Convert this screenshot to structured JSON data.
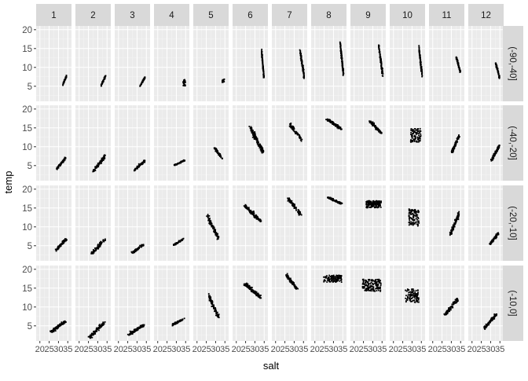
{
  "chart_data": {
    "type": "scatter",
    "facet_type": "grid",
    "xlabel": "salt",
    "ylabel": "temp",
    "x_ticks": [
      20,
      25,
      30,
      35
    ],
    "x_tick_labels": [
      "20",
      "25",
      "30",
      "35"
    ],
    "xlim": [
      18,
      37
    ],
    "y_ticks": [
      5,
      10,
      15,
      20
    ],
    "y_tick_labels": [
      "5",
      "10",
      "15",
      "20"
    ],
    "ylim": [
      1,
      21
    ],
    "grid": true,
    "column_facets": [
      "1",
      "2",
      "3",
      "4",
      "5",
      "6",
      "7",
      "8",
      "9",
      "10",
      "11",
      "12"
    ],
    "row_facets": [
      "(-90,-40]",
      "(-40,-20]",
      "(-20,-10]",
      "(-10,0]"
    ],
    "point_color": "#000000",
    "panel_background": "#ebebeb",
    "strip_background": "#d9d9d9",
    "panels": [
      {
        "row": 0,
        "col": 0,
        "salt": [
          32.0,
          34.5
        ],
        "temp": [
          5.0,
          8.0
        ],
        "trend": "increasing",
        "n": 50
      },
      {
        "row": 0,
        "col": 1,
        "salt": [
          31.5,
          34.5
        ],
        "temp": [
          5.0,
          8.0
        ],
        "trend": "increasing",
        "n": 50
      },
      {
        "row": 0,
        "col": 2,
        "salt": [
          31.5,
          34.5
        ],
        "temp": [
          5.0,
          7.5
        ],
        "trend": "increasing",
        "n": 45
      },
      {
        "row": 0,
        "col": 3,
        "salt": [
          33.5,
          35.0
        ],
        "temp": [
          5.0,
          7.0
        ],
        "trend": "flat",
        "n": 25
      },
      {
        "row": 0,
        "col": 4,
        "salt": [
          33.5,
          35.0
        ],
        "temp": [
          6.0,
          7.0
        ],
        "trend": "flat",
        "n": 15
      },
      {
        "row": 0,
        "col": 5,
        "salt": [
          33.5,
          35.0
        ],
        "temp": [
          6.5,
          15.0
        ],
        "trend": "decreasing",
        "n": 90
      },
      {
        "row": 0,
        "col": 6,
        "salt": [
          33.0,
          35.5
        ],
        "temp": [
          7.0,
          15.0
        ],
        "trend": "decreasing",
        "n": 90
      },
      {
        "row": 0,
        "col": 7,
        "salt": [
          33.5,
          35.5
        ],
        "temp": [
          7.5,
          17.0
        ],
        "trend": "decreasing",
        "n": 110
      },
      {
        "row": 0,
        "col": 8,
        "salt": [
          33.0,
          35.5
        ],
        "temp": [
          7.5,
          16.5
        ],
        "trend": "decreasing",
        "n": 100
      },
      {
        "row": 0,
        "col": 9,
        "salt": [
          33.5,
          35.5
        ],
        "temp": [
          7.5,
          16.0
        ],
        "trend": "decreasing",
        "n": 100
      },
      {
        "row": 0,
        "col": 10,
        "salt": [
          32.5,
          35.0
        ],
        "temp": [
          8.5,
          13.0
        ],
        "trend": "decreasing",
        "n": 80
      },
      {
        "row": 0,
        "col": 11,
        "salt": [
          32.5,
          35.0
        ],
        "temp": [
          7.0,
          11.5
        ],
        "trend": "decreasing",
        "n": 70
      },
      {
        "row": 1,
        "col": 0,
        "salt": [
          29.0,
          34.5
        ],
        "temp": [
          4.0,
          7.5
        ],
        "trend": "increasing",
        "n": 70
      },
      {
        "row": 1,
        "col": 1,
        "salt": [
          27.0,
          34.5
        ],
        "temp": [
          3.0,
          8.0
        ],
        "trend": "increasing",
        "n": 70
      },
      {
        "row": 1,
        "col": 2,
        "salt": [
          28.0,
          34.5
        ],
        "temp": [
          3.5,
          6.5
        ],
        "trend": "increasing",
        "n": 70
      },
      {
        "row": 1,
        "col": 3,
        "salt": [
          28.5,
          35.0
        ],
        "temp": [
          5.0,
          6.5
        ],
        "trend": "increasing",
        "n": 70
      },
      {
        "row": 1,
        "col": 4,
        "salt": [
          29.0,
          34.0
        ],
        "temp": [
          6.5,
          10.0
        ],
        "trend": "decreasing",
        "n": 60
      },
      {
        "row": 1,
        "col": 5,
        "salt": [
          27.0,
          35.0
        ],
        "temp": [
          8.0,
          15.5
        ],
        "trend": "decreasing",
        "n": 150
      },
      {
        "row": 1,
        "col": 6,
        "salt": [
          27.0,
          34.5
        ],
        "temp": [
          11.5,
          16.5
        ],
        "trend": "decreasing",
        "n": 80
      },
      {
        "row": 1,
        "col": 7,
        "salt": [
          26.0,
          35.0
        ],
        "temp": [
          14.5,
          17.5
        ],
        "trend": "decreasing",
        "n": 130
      },
      {
        "row": 1,
        "col": 8,
        "salt": [
          28.0,
          35.0
        ],
        "temp": [
          13.5,
          17.0
        ],
        "trend": "decreasing",
        "n": 130
      },
      {
        "row": 1,
        "col": 9,
        "salt": [
          29.0,
          35.0
        ],
        "temp": [
          11.0,
          15.0
        ],
        "trend": "flat",
        "n": 90
      },
      {
        "row": 1,
        "col": 10,
        "salt": [
          30.0,
          34.5
        ],
        "temp": [
          8.0,
          13.5
        ],
        "trend": "increasing",
        "n": 100
      },
      {
        "row": 1,
        "col": 11,
        "salt": [
          30.0,
          35.0
        ],
        "temp": [
          6.0,
          10.5
        ],
        "trend": "increasing",
        "n": 100
      },
      {
        "row": 2,
        "col": 0,
        "salt": [
          28.0,
          34.5
        ],
        "temp": [
          3.5,
          7.0
        ],
        "trend": "increasing",
        "n": 80
      },
      {
        "row": 2,
        "col": 1,
        "salt": [
          26.0,
          34.5
        ],
        "temp": [
          2.5,
          7.0
        ],
        "trend": "increasing",
        "n": 80
      },
      {
        "row": 2,
        "col": 2,
        "salt": [
          27.0,
          34.0
        ],
        "temp": [
          3.0,
          5.5
        ],
        "trend": "increasing",
        "n": 70
      },
      {
        "row": 2,
        "col": 3,
        "salt": [
          28.0,
          34.5
        ],
        "temp": [
          5.0,
          7.0
        ],
        "trend": "increasing",
        "n": 50
      },
      {
        "row": 2,
        "col": 4,
        "salt": [
          25.0,
          32.0
        ],
        "temp": [
          6.5,
          13.5
        ],
        "trend": "decreasing",
        "n": 90
      },
      {
        "row": 2,
        "col": 5,
        "salt": [
          24.0,
          34.0
        ],
        "temp": [
          11.0,
          16.0
        ],
        "trend": "decreasing",
        "n": 130
      },
      {
        "row": 2,
        "col": 6,
        "salt": [
          26.0,
          34.0
        ],
        "temp": [
          13.0,
          18.0
        ],
        "trend": "decreasing",
        "n": 90
      },
      {
        "row": 2,
        "col": 7,
        "salt": [
          26.0,
          35.0
        ],
        "temp": [
          16.0,
          18.0
        ],
        "trend": "decreasing",
        "n": 90
      },
      {
        "row": 2,
        "col": 8,
        "salt": [
          26.0,
          35.0
        ],
        "temp": [
          15.0,
          17.0
        ],
        "trend": "flat",
        "n": 140
      },
      {
        "row": 2,
        "col": 9,
        "salt": [
          28.0,
          34.0
        ],
        "temp": [
          10.0,
          15.0
        ],
        "trend": "flat",
        "n": 100
      },
      {
        "row": 2,
        "col": 10,
        "salt": [
          29.0,
          34.5
        ],
        "temp": [
          7.5,
          14.0
        ],
        "trend": "increasing",
        "n": 100
      },
      {
        "row": 2,
        "col": 11,
        "salt": [
          29.0,
          34.5
        ],
        "temp": [
          5.0,
          8.5
        ],
        "trend": "increasing",
        "n": 100
      },
      {
        "row": 3,
        "col": 0,
        "salt": [
          25.0,
          34.5
        ],
        "temp": [
          3.0,
          6.5
        ],
        "trend": "increasing",
        "n": 100
      },
      {
        "row": 3,
        "col": 1,
        "salt": [
          25.0,
          34.5
        ],
        "temp": [
          1.5,
          6.5
        ],
        "trend": "increasing",
        "n": 110
      },
      {
        "row": 3,
        "col": 2,
        "salt": [
          25.0,
          34.5
        ],
        "temp": [
          2.5,
          5.5
        ],
        "trend": "increasing",
        "n": 120
      },
      {
        "row": 3,
        "col": 3,
        "salt": [
          27.0,
          34.5
        ],
        "temp": [
          5.0,
          7.0
        ],
        "trend": "increasing",
        "n": 80
      },
      {
        "row": 3,
        "col": 4,
        "salt": [
          26.0,
          32.0
        ],
        "temp": [
          6.5,
          13.5
        ],
        "trend": "decreasing",
        "n": 90
      },
      {
        "row": 3,
        "col": 5,
        "salt": [
          24.0,
          34.0
        ],
        "temp": [
          12.0,
          16.5
        ],
        "trend": "decreasing",
        "n": 130
      },
      {
        "row": 3,
        "col": 6,
        "salt": [
          25.0,
          32.0
        ],
        "temp": [
          14.5,
          19.0
        ],
        "trend": "decreasing",
        "n": 100
      },
      {
        "row": 3,
        "col": 7,
        "salt": [
          24.0,
          35.0
        ],
        "temp": [
          16.5,
          18.5
        ],
        "trend": "flat",
        "n": 110
      },
      {
        "row": 3,
        "col": 8,
        "salt": [
          24.0,
          35.0
        ],
        "temp": [
          14.0,
          17.5
        ],
        "trend": "flat",
        "n": 150
      },
      {
        "row": 3,
        "col": 9,
        "salt": [
          26.0,
          34.0
        ],
        "temp": [
          11.0,
          15.0
        ],
        "trend": "flat",
        "n": 100
      },
      {
        "row": 3,
        "col": 10,
        "salt": [
          26.0,
          34.0
        ],
        "temp": [
          7.5,
          12.5
        ],
        "trend": "increasing",
        "n": 110
      },
      {
        "row": 3,
        "col": 11,
        "salt": [
          26.0,
          34.0
        ],
        "temp": [
          4.0,
          8.5
        ],
        "trend": "increasing",
        "n": 110
      }
    ]
  }
}
